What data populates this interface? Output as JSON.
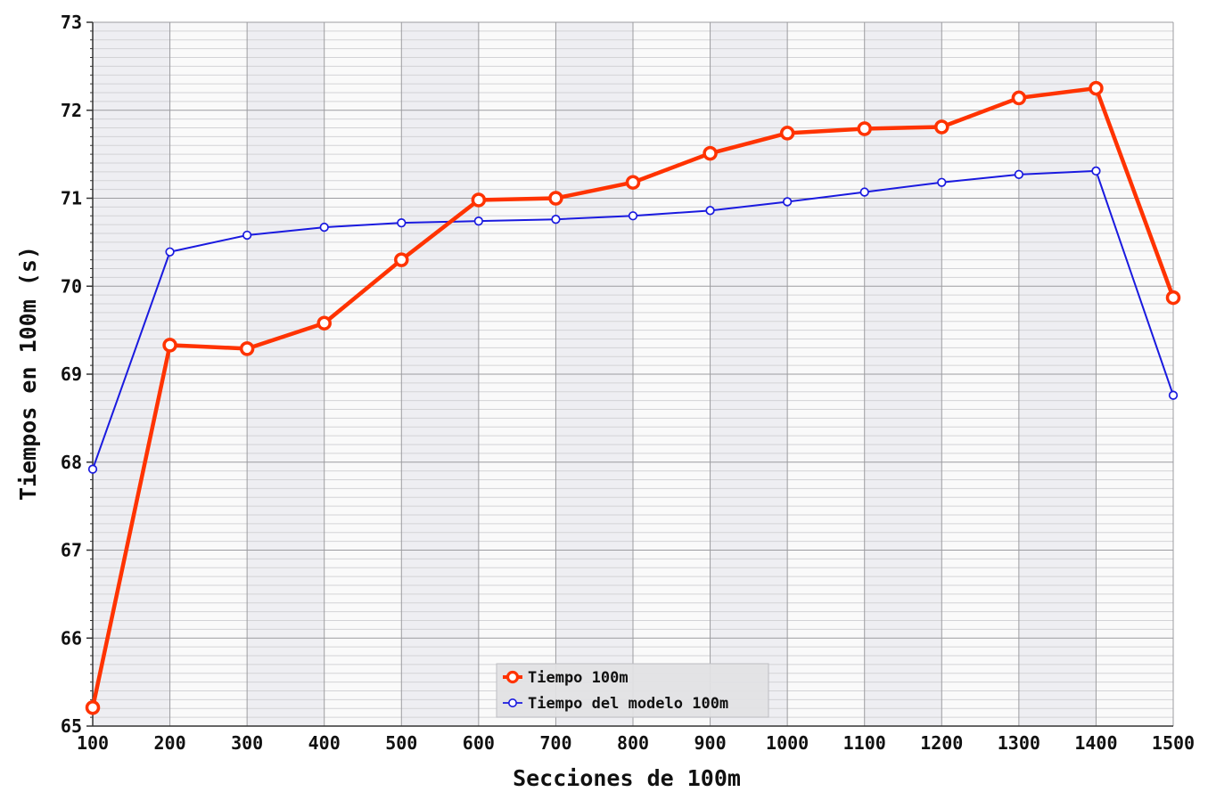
{
  "chart_data": {
    "type": "line",
    "xlabel": "Secciones de 100m",
    "ylabel": "Tiempos en 100m (s)",
    "x": [
      100,
      200,
      300,
      400,
      500,
      600,
      700,
      800,
      900,
      1000,
      1100,
      1200,
      1300,
      1400,
      1500
    ],
    "xlim": [
      100,
      1500
    ],
    "ylim": [
      65,
      73
    ],
    "x_ticks": [
      "100",
      "200",
      "300",
      "400",
      "500",
      "600",
      "700",
      "800",
      "900",
      "1000",
      "1100",
      "1200",
      "1300",
      "1400",
      "1500"
    ],
    "y_ticks": [
      "65",
      "66",
      "67",
      "68",
      "69",
      "70",
      "71",
      "72",
      "73"
    ],
    "grid": true,
    "legend_position": "bottom-center",
    "series": [
      {
        "name": "Tiempo 100m",
        "color": "#ff3300",
        "values": [
          65.21,
          69.33,
          69.29,
          69.58,
          70.3,
          70.98,
          71.0,
          71.18,
          71.51,
          71.74,
          71.79,
          71.81,
          72.14,
          72.25,
          69.87
        ]
      },
      {
        "name": "Tiempo del modelo 100m",
        "color": "#1a1adf",
        "values": [
          67.92,
          70.39,
          70.58,
          70.67,
          70.72,
          70.74,
          70.76,
          70.8,
          70.86,
          70.96,
          71.07,
          71.18,
          71.27,
          71.31,
          68.76
        ]
      }
    ]
  }
}
